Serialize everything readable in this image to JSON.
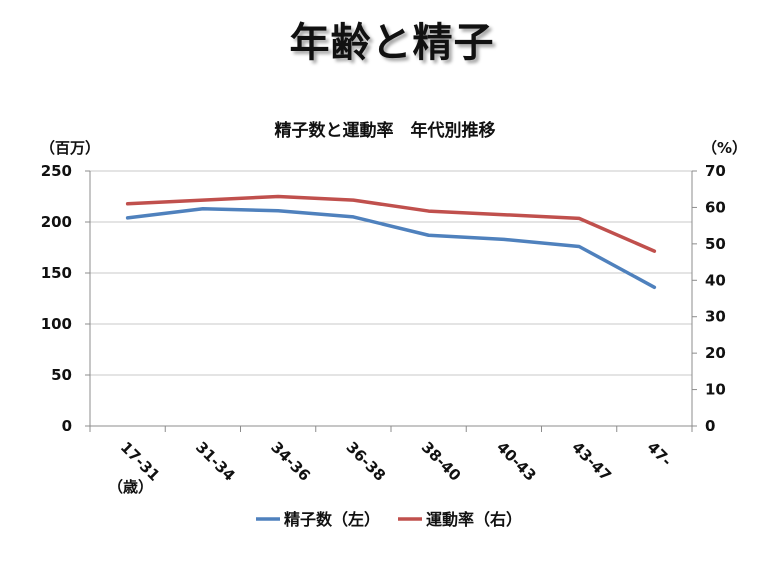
{
  "slide": {
    "title": "年齢と精子"
  },
  "chart_data": {
    "type": "line",
    "title": "精子数と運動率　年代別推移",
    "categories": [
      "17-31",
      "31-34",
      "34-36",
      "36-38",
      "38-40",
      "40-43",
      "43-47",
      "47-"
    ],
    "x_unit_label": "（歳）",
    "y_left": {
      "label": "（百万）",
      "range": [
        0,
        250
      ],
      "ticks": [
        0,
        50,
        100,
        150,
        200,
        250
      ]
    },
    "y_right": {
      "label": "（%）",
      "range": [
        0,
        70
      ],
      "ticks": [
        0,
        10,
        20,
        30,
        40,
        50,
        60,
        70
      ]
    },
    "grid": "horizontal",
    "legend_position": "bottom",
    "series": [
      {
        "name": "精子数（左）",
        "axis": "left",
        "color": "#4f81bd",
        "values": [
          204,
          213,
          211,
          205,
          187,
          183,
          176,
          136
        ]
      },
      {
        "name": "運動率（右）",
        "axis": "right",
        "color": "#c0504d",
        "values": [
          61,
          62,
          63,
          62,
          59,
          58,
          57,
          48
        ]
      }
    ]
  }
}
